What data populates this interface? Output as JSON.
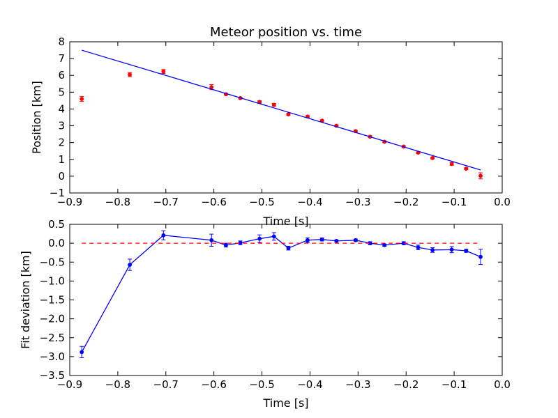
{
  "chart_data": [
    {
      "type": "scatter",
      "title": "Meteor position vs. time",
      "xlabel": "Time [s]",
      "ylabel": "Position [km]",
      "xlim": [
        -0.9,
        0.0
      ],
      "ylim": [
        -1,
        8
      ],
      "xticks": [
        -0.9,
        -0.8,
        -0.7,
        -0.6,
        -0.5,
        -0.4,
        -0.3,
        -0.2,
        -0.1,
        0.0
      ],
      "yticks": [
        -1,
        0,
        1,
        2,
        3,
        4,
        5,
        6,
        7,
        8
      ],
      "xtick_labels": [
        "−0.9",
        "−0.8",
        "−0.7",
        "−0.6",
        "−0.5",
        "−0.4",
        "−0.3",
        "−0.2",
        "−0.1",
        "0.0"
      ],
      "ytick_labels": [
        "−1",
        "0",
        "1",
        "2",
        "3",
        "4",
        "5",
        "6",
        "7",
        "8"
      ],
      "grid": false,
      "series": [
        {
          "kind": "points_with_errorbars",
          "color": "#ff0000",
          "x": [
            -0.875,
            -0.775,
            -0.705,
            -0.605,
            -0.575,
            -0.545,
            -0.505,
            -0.475,
            -0.445,
            -0.405,
            -0.375,
            -0.345,
            -0.305,
            -0.275,
            -0.245,
            -0.205,
            -0.175,
            -0.145,
            -0.105,
            -0.075,
            -0.045
          ],
          "y": [
            4.6,
            6.05,
            6.23,
            5.3,
            4.88,
            4.65,
            4.42,
            4.25,
            3.68,
            3.55,
            3.3,
            3.0,
            2.68,
            2.35,
            2.05,
            1.76,
            1.4,
            1.08,
            0.73,
            0.45,
            0.02
          ],
          "err": [
            0.15,
            0.12,
            0.12,
            0.15,
            0.05,
            0.05,
            0.08,
            0.08,
            0.05,
            0.05,
            0.05,
            0.05,
            0.05,
            0.05,
            0.05,
            0.05,
            0.05,
            0.05,
            0.08,
            0.05,
            0.18
          ]
        },
        {
          "kind": "line",
          "color": "#0000ff",
          "x": [
            -0.875,
            -0.045
          ],
          "y": [
            7.5,
            0.37
          ]
        }
      ]
    },
    {
      "type": "line",
      "title": "",
      "xlabel": "Time [s]",
      "ylabel": "Fit deviation [km]",
      "xlim": [
        -0.9,
        0.0
      ],
      "ylim": [
        -3.5,
        0.5
      ],
      "xticks": [
        -0.9,
        -0.8,
        -0.7,
        -0.6,
        -0.5,
        -0.4,
        -0.3,
        -0.2,
        -0.1,
        0.0
      ],
      "yticks": [
        -3.5,
        -3.0,
        -2.5,
        -2.0,
        -1.5,
        -1.0,
        -0.5,
        0.0,
        0.5
      ],
      "xtick_labels": [
        "−0.9",
        "−0.8",
        "−0.7",
        "−0.6",
        "−0.5",
        "−0.4",
        "−0.3",
        "−0.2",
        "−0.1",
        "0.0"
      ],
      "ytick_labels": [
        "−3.5",
        "−3.0",
        "−2.5",
        "−2.0",
        "−1.5",
        "−1.0",
        "−0.5",
        "0.0",
        "0.5"
      ],
      "grid": false,
      "series": [
        {
          "kind": "line_with_errorbars",
          "color": "#0000ff",
          "x": [
            -0.875,
            -0.775,
            -0.705,
            -0.605,
            -0.575,
            -0.545,
            -0.505,
            -0.475,
            -0.445,
            -0.405,
            -0.375,
            -0.345,
            -0.305,
            -0.275,
            -0.245,
            -0.205,
            -0.175,
            -0.145,
            -0.105,
            -0.075,
            -0.045
          ],
          "y": [
            -2.88,
            -0.57,
            0.21,
            0.08,
            -0.05,
            0.01,
            0.12,
            0.18,
            -0.13,
            0.08,
            0.1,
            0.06,
            0.08,
            0.0,
            -0.05,
            0.0,
            -0.11,
            -0.18,
            -0.17,
            -0.2,
            -0.36
          ],
          "err": [
            0.15,
            0.15,
            0.12,
            0.16,
            0.05,
            0.05,
            0.1,
            0.1,
            0.05,
            0.06,
            0.04,
            0.03,
            0.03,
            0.04,
            0.03,
            0.04,
            0.06,
            0.06,
            0.08,
            0.04,
            0.2
          ]
        },
        {
          "kind": "reference_line",
          "color": "#ff0000",
          "dash": true,
          "x": [
            -0.875,
            -0.045
          ],
          "y": [
            0.0,
            0.0
          ]
        }
      ]
    }
  ]
}
